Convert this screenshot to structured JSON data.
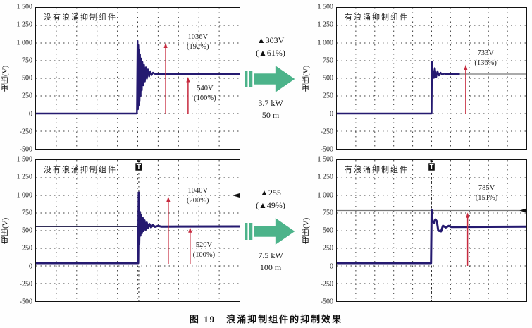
{
  "figure_caption": "图 19　浪涌抑制组件的抑制效果",
  "axis": {
    "y_title": "电压(V)",
    "y_ticks": [
      "1 500",
      "1 250",
      "1 000",
      "750",
      "500",
      "250",
      "0",
      "-250",
      "-500"
    ],
    "y_min": -500,
    "y_max": 1500,
    "y_tick_step": 250,
    "x_divisions": 10,
    "grid_style": "dotted"
  },
  "colors": {
    "waveform": "#251a70",
    "measure_arrow": "#c62a3e",
    "transfer_arrow": "#4cb38a",
    "reference_line_gray": "#777777",
    "reference_line_dark": "#15103f",
    "grid": "#3c3c3c"
  },
  "transfers": [
    {
      "delta_line1": "▲303V",
      "delta_line2": "(▲61%)",
      "power": "3.7 kW",
      "distance": "50 m"
    },
    {
      "delta_line1": "▲255",
      "delta_line2": "(▲49%)",
      "power": "7.5 kW",
      "distance": "100 m"
    }
  ],
  "chart_data": [
    {
      "type": "line",
      "title": "没有浪涌抑制组件",
      "ylabel": "电压(V)",
      "ylim": [
        -500,
        1500
      ],
      "x_divisions": 10,
      "peak_voltage": "1036V",
      "peak_percent": "(192%)",
      "steady_voltage": "540V",
      "steady_percent": "(100%)",
      "series": [
        {
          "name": "电压波形",
          "color": "#251a70",
          "w": 2.4,
          "points": [
            [
              0,
              0
            ],
            [
              4.96,
              0
            ],
            [
              4.99,
              1030
            ],
            [
              5.01,
              60
            ],
            [
              5.03,
              970
            ],
            [
              5.05,
              120
            ],
            [
              5.07,
              900
            ],
            [
              5.09,
              180
            ],
            [
              5.11,
              840
            ],
            [
              5.14,
              250
            ],
            [
              5.17,
              780
            ],
            [
              5.2,
              330
            ],
            [
              5.23,
              730
            ],
            [
              5.27,
              400
            ],
            [
              5.31,
              690
            ],
            [
              5.35,
              455
            ],
            [
              5.4,
              655
            ],
            [
              5.45,
              495
            ],
            [
              5.5,
              625
            ],
            [
              5.56,
              525
            ],
            [
              5.62,
              600
            ],
            [
              5.68,
              545
            ],
            [
              5.75,
              580
            ],
            [
              5.85,
              562
            ],
            [
              10,
              562
            ]
          ]
        }
      ],
      "ref_lines": [],
      "annotations": {
        "labels": [
          {
            "x": 7.95,
            "value": 1150,
            "lines": [
              "1036V",
              "(192%)"
            ]
          },
          {
            "x": 8.3,
            "value": 420,
            "lines": [
              "540V",
              "(100%)"
            ]
          }
        ],
        "arrows": [
          {
            "x": 6.37,
            "v_from": 0,
            "v_to": 1005
          },
          {
            "x": 7.47,
            "v_from": 0,
            "v_to": 520
          }
        ],
        "trigger_x": null,
        "edge_marker_value": null
      }
    },
    {
      "type": "line",
      "title": "有浪涌抑制组件",
      "ylabel": "电压(V)",
      "ylim": [
        -500,
        1500
      ],
      "x_divisions": 10,
      "peak_voltage": "733V",
      "peak_percent": "(136%)",
      "series": [
        {
          "name": "电压波形",
          "color": "#251a70",
          "w": 2.4,
          "points": [
            [
              0,
              0
            ],
            [
              5,
              0
            ],
            [
              5.02,
              730
            ],
            [
              5.08,
              555
            ],
            [
              5.12,
              505
            ],
            [
              5.17,
              645
            ],
            [
              5.24,
              515
            ],
            [
              5.31,
              600
            ],
            [
              5.39,
              540
            ],
            [
              5.47,
              580
            ],
            [
              5.56,
              552
            ],
            [
              5.65,
              565
            ],
            [
              5.8,
              558
            ],
            [
              6.45,
              560
            ]
          ]
        }
      ],
      "ref_lines": [
        {
          "value": 560,
          "x_from": 5,
          "x_to": 10,
          "color": "#777777",
          "width": 1.2
        }
      ],
      "annotations": {
        "labels": [
          {
            "x": 7.85,
            "value": 920,
            "lines": [
              "733V",
              "(136%)"
            ]
          }
        ],
        "arrows": [
          {
            "x": 6.8,
            "v_from": 0,
            "v_to": 695
          }
        ],
        "trigger_x": null,
        "edge_marker_value": null
      }
    },
    {
      "type": "line",
      "title": "没有浪涌抑制组件",
      "ylabel": "电压(V)",
      "ylim": [
        -500,
        1500
      ],
      "x_divisions": 10,
      "peak_voltage": "1040V",
      "peak_percent": "(200%)",
      "steady_voltage": "520V",
      "steady_percent": "(100%)",
      "series": [
        {
          "name": "电压波形",
          "color": "#251a70",
          "w": 3,
          "points": [
            [
              0,
              40
            ],
            [
              5.02,
              40
            ],
            [
              5.05,
              1040
            ],
            [
              5.07,
              310
            ],
            [
              5.1,
              765
            ],
            [
              5.13,
              430
            ],
            [
              5.16,
              720
            ],
            [
              5.2,
              465
            ],
            [
              5.24,
              680
            ],
            [
              5.28,
              495
            ],
            [
              5.33,
              645
            ],
            [
              5.38,
              515
            ],
            [
              5.44,
              615
            ],
            [
              5.5,
              535
            ],
            [
              5.57,
              595
            ],
            [
              5.65,
              548
            ],
            [
              5.74,
              578
            ],
            [
              5.85,
              555
            ],
            [
              6,
              568
            ],
            [
              6.15,
              558
            ],
            [
              10,
              560
            ]
          ]
        }
      ],
      "ref_lines": [
        {
          "value": 560,
          "x_from": 0,
          "x_to": 10,
          "color": "#15103f",
          "width": 1.8
        }
      ],
      "annotations": {
        "labels": [
          {
            "x": 7.95,
            "value": 1130,
            "lines": [
              "1040V",
              "(200%)"
            ]
          },
          {
            "x": 8.25,
            "value": 360,
            "lines": [
              "520V",
              "(100%)"
            ]
          }
        ],
        "arrows": [
          {
            "x": 6.5,
            "v_from": 30,
            "v_to": 985
          },
          {
            "x": 7.57,
            "v_from": 30,
            "v_to": 548
          }
        ],
        "trigger_x": 5.05,
        "edge_marker_value": 1000
      }
    },
    {
      "type": "line",
      "title": "有浪涌抑制组件",
      "ylabel": "电压(V)",
      "ylim": [
        -500,
        1500
      ],
      "x_divisions": 10,
      "peak_voltage": "785V",
      "peak_percent": "(151%)",
      "series": [
        {
          "name": "电压波形",
          "color": "#251a70",
          "w": 3,
          "points": [
            [
              0,
              40
            ],
            [
              4.97,
              40
            ],
            [
              5,
              790
            ],
            [
              5.05,
              640
            ],
            [
              5.12,
              610
            ],
            [
              5.2,
              660
            ],
            [
              5.28,
              630
            ],
            [
              5.35,
              500
            ],
            [
              5.5,
              490
            ],
            [
              5.6,
              570
            ],
            [
              5.75,
              545
            ],
            [
              5.9,
              568
            ],
            [
              6.05,
              552
            ],
            [
              10,
              558
            ]
          ]
        }
      ],
      "ref_lines": [
        {
          "value": 785,
          "x_from": 0,
          "x_to": 10,
          "color": "#777777",
          "width": 1.2
        }
      ],
      "annotations": {
        "labels": [
          {
            "x": 7.9,
            "value": 1170,
            "lines": [
              "785V",
              "(151%)"
            ]
          }
        ],
        "arrows": [
          {
            "x": 6.9,
            "v_from": 0,
            "v_to": 758
          }
        ],
        "trigger_x": 5.0,
        "edge_marker_value": 785
      }
    }
  ]
}
